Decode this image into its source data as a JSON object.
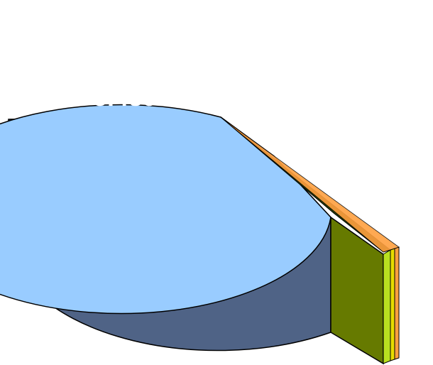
{
  "chart_data": {
    "type": "pie",
    "style": "3d-exploded",
    "title": "",
    "slices": [
      {
        "name": "Idroelettrico",
        "percent": 98.8,
        "energy": "5.489 GWh",
        "power": "1.550 MW",
        "color_top": "#99ccff",
        "color_side": "#4f6386"
      },
      {
        "name": "",
        "percent": 0.6,
        "color_top": "#b9e020",
        "color_side": "#667a00"
      },
      {
        "name": "",
        "percent": 0.4,
        "color_top": "#e7dc00",
        "color_side": "#8f8a00"
      },
      {
        "name": "",
        "percent": 0.2,
        "color_top": "#ffa040",
        "color_side": "#b86a10"
      }
    ]
  },
  "labels": {
    "line1": "Idroelettrico 98,8%",
    "line2": "5.489 GWh 1.550 MW"
  }
}
